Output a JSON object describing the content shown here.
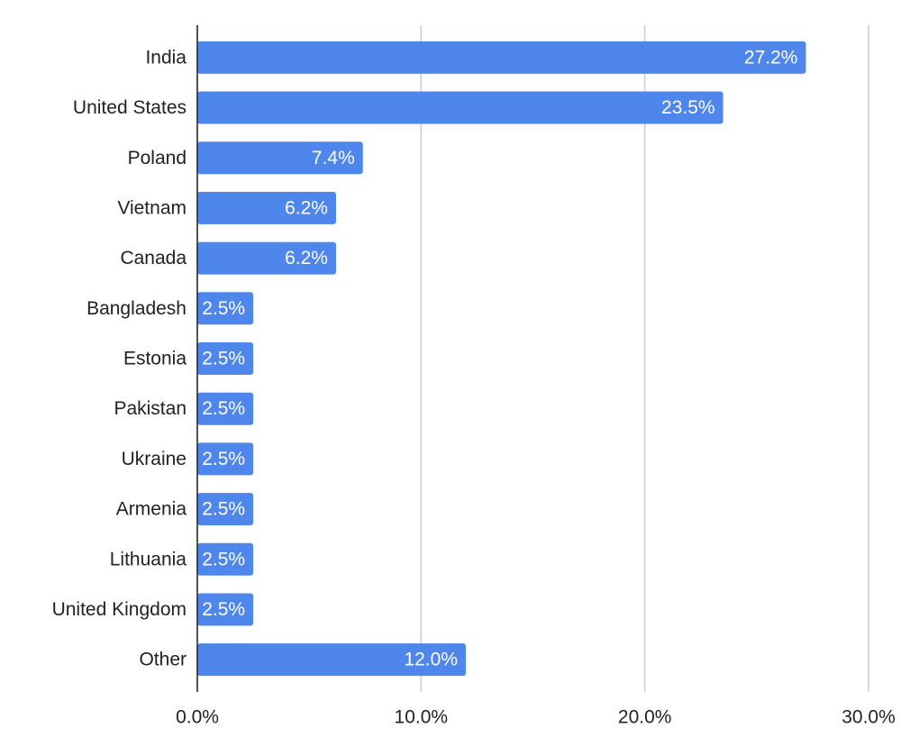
{
  "chart_data": {
    "type": "hbar",
    "categories": [
      "India",
      "United States",
      "Poland",
      "Vietnam",
      "Canada",
      "Bangladesh",
      "Estonia",
      "Pakistan",
      "Ukraine",
      "Armenia",
      "Lithuania",
      "United Kingdom",
      "Other"
    ],
    "values": [
      27.2,
      23.5,
      7.4,
      6.2,
      6.2,
      2.5,
      2.5,
      2.5,
      2.5,
      2.5,
      2.5,
      2.5,
      12.0
    ],
    "value_labels": [
      "27.2%",
      "23.5%",
      "7.4%",
      "6.2%",
      "6.2%",
      "2.5%",
      "2.5%",
      "2.5%",
      "2.5%",
      "2.5%",
      "2.5%",
      "2.5%",
      "12.0%"
    ],
    "color": "#4f86ec",
    "xlim": [
      0,
      30
    ],
    "xticks": [
      {
        "value": 0,
        "label": "0.0%"
      },
      {
        "value": 10,
        "label": "10.0%"
      },
      {
        "value": 20,
        "label": "20.0%"
      },
      {
        "value": 30,
        "label": "30.0%"
      }
    ],
    "grid": true
  }
}
